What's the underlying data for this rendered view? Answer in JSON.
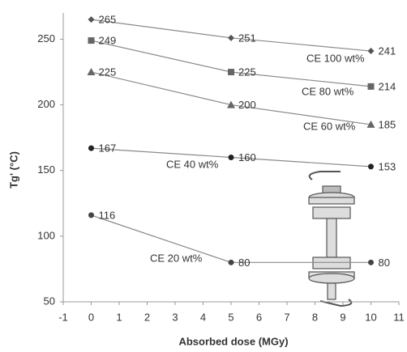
{
  "chart_data": {
    "type": "line",
    "x_label": "Absorbed dose (MGy)",
    "y_label": "Tg' (°C)",
    "x": [
      0,
      5,
      10
    ],
    "xlim": [
      -1,
      11
    ],
    "xticks": [
      -1,
      0,
      1,
      2,
      3,
      4,
      5,
      6,
      7,
      8,
      9,
      10,
      11
    ],
    "ylim": [
      50,
      270
    ],
    "yticks": [
      50,
      100,
      150,
      200,
      250
    ],
    "line_color": "#8a8a8a",
    "series": [
      {
        "name": "CE 100 wt%",
        "color": "#555555",
        "marker": "diamond",
        "values": [
          265,
          251,
          241
        ]
      },
      {
        "name": "CE 80 wt%",
        "color": "#666666",
        "marker": "square",
        "values": [
          249,
          225,
          214
        ]
      },
      {
        "name": "CE 60 wt%",
        "color": "#666666",
        "marker": "triangle",
        "values": [
          225,
          200,
          185
        ]
      },
      {
        "name": "CE 40 wt%",
        "color": "#222222",
        "marker": "circle",
        "values": [
          167,
          160,
          153
        ]
      },
      {
        "name": "CE 20 wt%",
        "color": "#444444",
        "marker": "circle",
        "values": [
          116,
          80,
          80
        ]
      }
    ]
  }
}
